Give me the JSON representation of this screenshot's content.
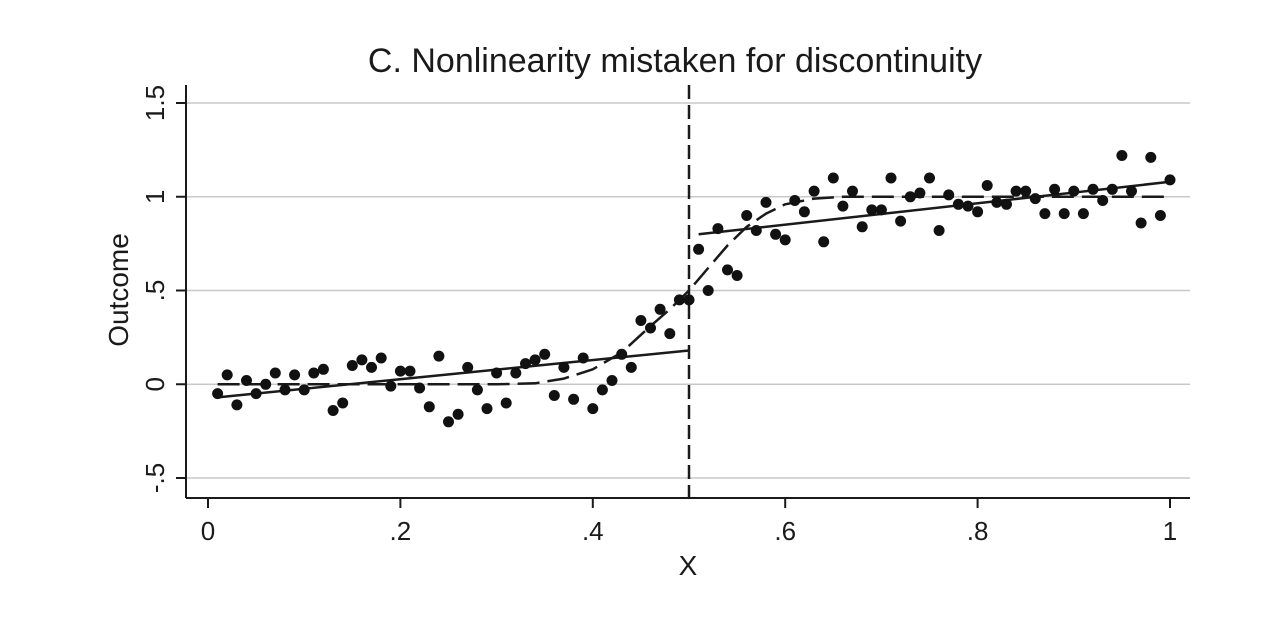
{
  "chart_data": {
    "type": "scatter",
    "title": "C. Nonlinearity mistaken for discontinuity",
    "xlabel": "X",
    "ylabel": "Outcome",
    "xlim": [
      0,
      1
    ],
    "ylim": [
      -0.5,
      1.5
    ],
    "x_ticks": [
      0,
      0.2,
      0.4,
      0.6,
      0.8,
      1
    ],
    "x_tick_labels": [
      "0",
      ".2",
      ".4",
      ".6",
      ".8",
      "1"
    ],
    "y_ticks": [
      -0.5,
      0,
      0.5,
      1,
      1.5
    ],
    "y_tick_labels": [
      "-.5",
      "0",
      ".5",
      "1",
      "1.5"
    ],
    "grid": true,
    "cutoff": 0.5,
    "points": [
      [
        0.01,
        -0.05
      ],
      [
        0.02,
        0.05
      ],
      [
        0.03,
        -0.11
      ],
      [
        0.04,
        0.02
      ],
      [
        0.05,
        -0.05
      ],
      [
        0.06,
        0.0
      ],
      [
        0.07,
        0.06
      ],
      [
        0.08,
        -0.03
      ],
      [
        0.09,
        0.05
      ],
      [
        0.1,
        -0.03
      ],
      [
        0.11,
        0.06
      ],
      [
        0.12,
        0.08
      ],
      [
        0.13,
        -0.14
      ],
      [
        0.14,
        -0.1
      ],
      [
        0.15,
        0.1
      ],
      [
        0.16,
        0.13
      ],
      [
        0.17,
        0.09
      ],
      [
        0.18,
        0.14
      ],
      [
        0.19,
        -0.01
      ],
      [
        0.2,
        0.07
      ],
      [
        0.21,
        0.07
      ],
      [
        0.22,
        -0.02
      ],
      [
        0.23,
        -0.12
      ],
      [
        0.24,
        0.15
      ],
      [
        0.25,
        -0.2
      ],
      [
        0.26,
        -0.16
      ],
      [
        0.27,
        0.09
      ],
      [
        0.28,
        -0.03
      ],
      [
        0.29,
        -0.13
      ],
      [
        0.3,
        0.06
      ],
      [
        0.31,
        -0.1
      ],
      [
        0.32,
        0.06
      ],
      [
        0.33,
        0.11
      ],
      [
        0.34,
        0.13
      ],
      [
        0.35,
        0.16
      ],
      [
        0.36,
        -0.06
      ],
      [
        0.37,
        0.09
      ],
      [
        0.38,
        -0.08
      ],
      [
        0.39,
        0.14
      ],
      [
        0.4,
        -0.13
      ],
      [
        0.41,
        -0.03
      ],
      [
        0.42,
        0.02
      ],
      [
        0.43,
        0.16
      ],
      [
        0.44,
        0.09
      ],
      [
        0.45,
        0.34
      ],
      [
        0.46,
        0.3
      ],
      [
        0.47,
        0.4
      ],
      [
        0.48,
        0.27
      ],
      [
        0.49,
        0.45
      ],
      [
        0.5,
        0.45
      ],
      [
        0.51,
        0.72
      ],
      [
        0.52,
        0.5
      ],
      [
        0.53,
        0.83
      ],
      [
        0.54,
        0.61
      ],
      [
        0.55,
        0.58
      ],
      [
        0.56,
        0.9
      ],
      [
        0.57,
        0.82
      ],
      [
        0.58,
        0.97
      ],
      [
        0.59,
        0.8
      ],
      [
        0.6,
        0.77
      ],
      [
        0.61,
        0.98
      ],
      [
        0.62,
        0.92
      ],
      [
        0.63,
        1.03
      ],
      [
        0.64,
        0.76
      ],
      [
        0.65,
        1.1
      ],
      [
        0.66,
        0.95
      ],
      [
        0.67,
        1.03
      ],
      [
        0.68,
        0.84
      ],
      [
        0.69,
        0.93
      ],
      [
        0.7,
        0.93
      ],
      [
        0.71,
        1.1
      ],
      [
        0.72,
        0.87
      ],
      [
        0.73,
        1.0
      ],
      [
        0.74,
        1.02
      ],
      [
        0.75,
        1.1
      ],
      [
        0.76,
        0.82
      ],
      [
        0.77,
        1.01
      ],
      [
        0.78,
        0.96
      ],
      [
        0.79,
        0.95
      ],
      [
        0.8,
        0.92
      ],
      [
        0.81,
        1.06
      ],
      [
        0.82,
        0.97
      ],
      [
        0.83,
        0.96
      ],
      [
        0.84,
        1.03
      ],
      [
        0.85,
        1.03
      ],
      [
        0.86,
        0.99
      ],
      [
        0.87,
        0.91
      ],
      [
        0.88,
        1.04
      ],
      [
        0.89,
        0.91
      ],
      [
        0.9,
        1.03
      ],
      [
        0.91,
        0.91
      ],
      [
        0.92,
        1.04
      ],
      [
        0.93,
        0.98
      ],
      [
        0.94,
        1.04
      ],
      [
        0.95,
        1.22
      ],
      [
        0.96,
        1.03
      ],
      [
        0.97,
        0.86
      ],
      [
        0.98,
        1.21
      ],
      [
        0.99,
        0.9
      ],
      [
        1.0,
        1.09
      ]
    ],
    "fits": [
      {
        "style": "solid",
        "points": [
          [
            0.01,
            -0.07
          ],
          [
            0.5,
            0.18
          ]
        ]
      },
      {
        "style": "solid",
        "points": [
          [
            0.51,
            0.8
          ],
          [
            1.0,
            1.08
          ]
        ]
      },
      {
        "style": "dashed",
        "points": [
          [
            0.01,
            0.0
          ],
          [
            0.1,
            0.0
          ],
          [
            0.2,
            0.0
          ],
          [
            0.3,
            0.0
          ],
          [
            0.34,
            0.005
          ],
          [
            0.37,
            0.03
          ],
          [
            0.4,
            0.08
          ],
          [
            0.43,
            0.17
          ],
          [
            0.46,
            0.31
          ],
          [
            0.48,
            0.4
          ],
          [
            0.5,
            0.5
          ],
          [
            0.52,
            0.62
          ],
          [
            0.54,
            0.74
          ],
          [
            0.56,
            0.84
          ],
          [
            0.58,
            0.91
          ],
          [
            0.6,
            0.96
          ],
          [
            0.63,
            0.99
          ],
          [
            0.66,
            1.0
          ],
          [
            0.8,
            1.0
          ],
          [
            1.0,
            1.0
          ]
        ]
      }
    ]
  }
}
